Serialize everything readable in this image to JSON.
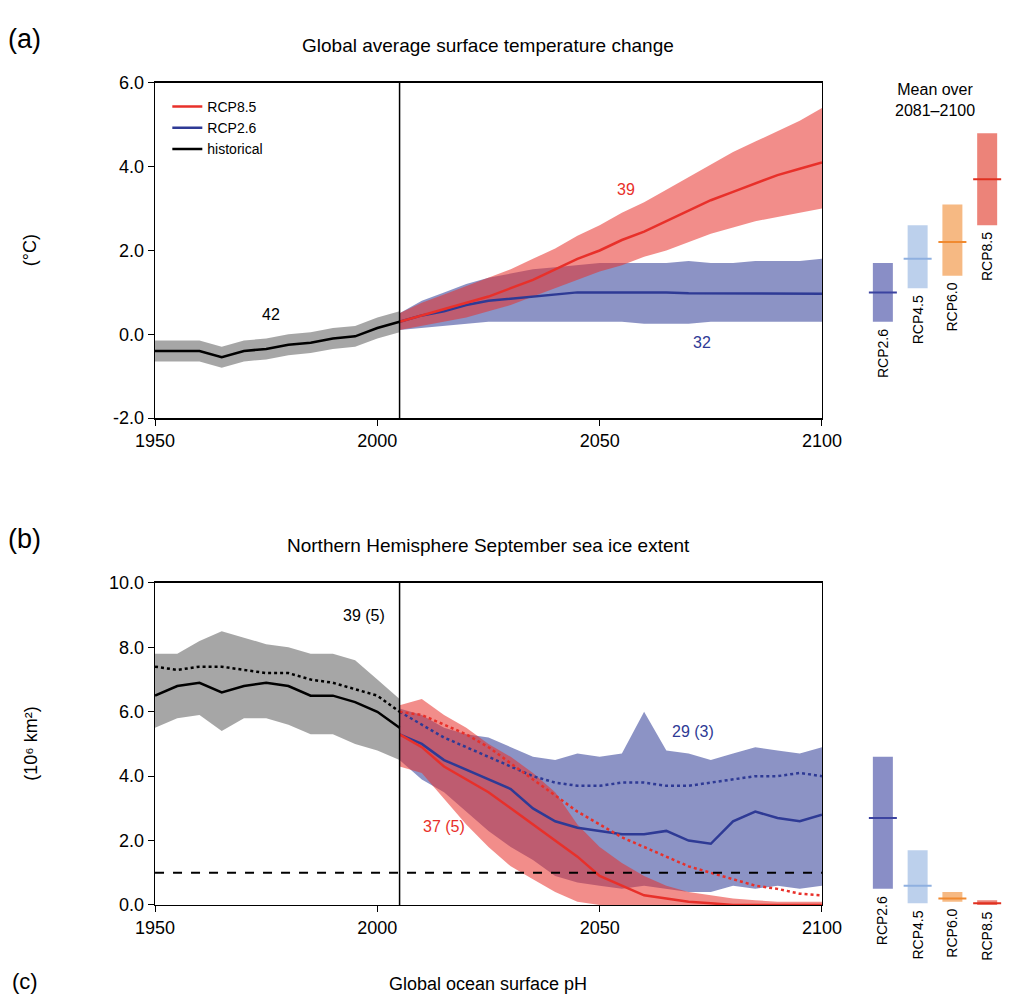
{
  "chart_data": [
    {
      "type": "line",
      "label": "(a)",
      "title": "Global average surface temperature change",
      "ylabel": "(°C)",
      "xlim": [
        1950,
        2100
      ],
      "xticks": [
        1950,
        2000,
        2050,
        2100
      ],
      "ylim": [
        -2.0,
        6.0
      ],
      "yticks": [
        {
          "value": -2.0,
          "label": "-2.0"
        },
        {
          "value": 0.0,
          "label": "0.0"
        },
        {
          "value": 2.0,
          "label": "2.0"
        },
        {
          "value": 4.0,
          "label": "4.0"
        },
        {
          "value": 6.0,
          "label": "6.0"
        }
      ],
      "grid": false,
      "legend": "upper left",
      "vline": 2005,
      "series": [
        {
          "name": "historical",
          "color": "#000000",
          "line_style": "solid",
          "x": [
            1950,
            1955,
            1960,
            1965,
            1970,
            1975,
            1980,
            1985,
            1990,
            1995,
            2000,
            2005
          ],
          "values": [
            -0.4,
            -0.4,
            -0.4,
            -0.55,
            -0.4,
            -0.35,
            -0.25,
            -0.2,
            -0.1,
            -0.05,
            0.15,
            0.3
          ],
          "lower": [
            -0.65,
            -0.65,
            -0.65,
            -0.8,
            -0.65,
            -0.6,
            -0.5,
            -0.45,
            -0.35,
            -0.3,
            -0.1,
            0.05
          ],
          "upper": [
            -0.15,
            -0.15,
            -0.15,
            -0.3,
            -0.15,
            -0.1,
            0.0,
            0.05,
            0.15,
            0.2,
            0.4,
            0.55
          ]
        },
        {
          "name": "RCP2.6",
          "color": "#2e3a95",
          "line_style": "solid",
          "x": [
            2005,
            2010,
            2015,
            2020,
            2025,
            2030,
            2035,
            2040,
            2045,
            2050,
            2055,
            2060,
            2065,
            2070,
            2075,
            2080,
            2085,
            2090,
            2095,
            2100
          ],
          "values": [
            0.3,
            0.45,
            0.55,
            0.7,
            0.8,
            0.85,
            0.9,
            0.95,
            1.0,
            1.0,
            1.0,
            1.0,
            1.0,
            0.98,
            0.98,
            0.98,
            0.97,
            0.97,
            0.97,
            0.97
          ],
          "lower": [
            0.1,
            0.15,
            0.2,
            0.25,
            0.3,
            0.3,
            0.3,
            0.3,
            0.3,
            0.3,
            0.3,
            0.25,
            0.25,
            0.25,
            0.3,
            0.3,
            0.3,
            0.3,
            0.3,
            0.3
          ],
          "upper": [
            0.5,
            0.8,
            1.0,
            1.2,
            1.35,
            1.45,
            1.55,
            1.6,
            1.65,
            1.7,
            1.7,
            1.7,
            1.7,
            1.75,
            1.7,
            1.7,
            1.75,
            1.75,
            1.75,
            1.8
          ]
        },
        {
          "name": "RCP8.5",
          "color": "#e8302a",
          "line_style": "solid",
          "x": [
            2005,
            2010,
            2015,
            2020,
            2025,
            2030,
            2035,
            2040,
            2045,
            2050,
            2055,
            2060,
            2065,
            2070,
            2075,
            2080,
            2085,
            2090,
            2095,
            2100
          ],
          "values": [
            0.3,
            0.45,
            0.6,
            0.75,
            0.9,
            1.1,
            1.3,
            1.55,
            1.8,
            2.0,
            2.25,
            2.45,
            2.7,
            2.95,
            3.2,
            3.4,
            3.6,
            3.8,
            3.95,
            4.1
          ],
          "lower": [
            0.1,
            0.2,
            0.3,
            0.4,
            0.55,
            0.7,
            0.9,
            1.1,
            1.3,
            1.5,
            1.65,
            1.85,
            2.0,
            2.2,
            2.4,
            2.55,
            2.7,
            2.8,
            2.9,
            3.0
          ],
          "upper": [
            0.5,
            0.75,
            0.95,
            1.15,
            1.35,
            1.55,
            1.8,
            2.05,
            2.35,
            2.6,
            2.9,
            3.15,
            3.45,
            3.75,
            4.05,
            4.35,
            4.6,
            4.85,
            5.1,
            5.4
          ]
        }
      ],
      "annotations": [
        {
          "text": "42",
          "x": 1976,
          "y": 0.48,
          "color": "#000000"
        },
        {
          "text": "39",
          "x": 2056,
          "y": 3.45,
          "color": "#e8302a"
        },
        {
          "text": "32",
          "x": 2073,
          "y": -0.2,
          "color": "#2e3a95"
        }
      ],
      "side_bars": {
        "title": [
          "Mean over",
          "2081–2100"
        ],
        "categories": [
          "RCP2.6",
          "RCP4.5",
          "RCP6.0",
          "RCP8.5"
        ],
        "colors": [
          "#3b43a0",
          "#8fb0e0",
          "#f08a30",
          "#e03020"
        ],
        "low": [
          0.3,
          1.1,
          1.4,
          2.6
        ],
        "mean": [
          1.0,
          1.8,
          2.2,
          3.7
        ],
        "high": [
          1.7,
          2.6,
          3.1,
          4.8
        ]
      }
    },
    {
      "type": "line",
      "label": "(b)",
      "title": "Northern Hemisphere September sea ice extent",
      "ylabel": "(10⁶ km²)",
      "xlim": [
        1950,
        2100
      ],
      "xticks": [
        1950,
        2000,
        2050,
        2100
      ],
      "ylim": [
        0.0,
        10.0
      ],
      "yticks": [
        {
          "value": 0.0,
          "label": "0.0"
        },
        {
          "value": 2.0,
          "label": "2.0"
        },
        {
          "value": 4.0,
          "label": "4.0"
        },
        {
          "value": 6.0,
          "label": "6.0"
        },
        {
          "value": 8.0,
          "label": "8.0"
        },
        {
          "value": 10.0,
          "label": "10.0"
        }
      ],
      "grid": false,
      "vline": 2005,
      "hline": 1.0,
      "series": [
        {
          "name": "historical",
          "color": "#000000",
          "line_style": "solid",
          "x": [
            1950,
            1955,
            1960,
            1965,
            1970,
            1975,
            1980,
            1985,
            1990,
            1995,
            2000,
            2005
          ],
          "values": [
            6.5,
            6.8,
            6.9,
            6.6,
            6.8,
            6.9,
            6.8,
            6.5,
            6.5,
            6.3,
            6.0,
            5.5
          ],
          "lower": [
            5.5,
            5.8,
            5.9,
            5.4,
            5.8,
            5.8,
            5.6,
            5.3,
            5.3,
            5.0,
            4.8,
            4.5
          ],
          "upper": [
            7.8,
            7.8,
            8.2,
            8.5,
            8.3,
            8.1,
            8.0,
            7.8,
            7.8,
            7.6,
            7.0,
            6.4
          ]
        },
        {
          "name": "historical",
          "color": "#000000",
          "line_style": "dotted",
          "x": [
            1950,
            1955,
            1960,
            1965,
            1970,
            1975,
            1980,
            1985,
            1990,
            1995,
            2000,
            2005
          ],
          "values": [
            7.4,
            7.3,
            7.4,
            7.4,
            7.3,
            7.2,
            7.2,
            7.0,
            6.9,
            6.7,
            6.5,
            6.0
          ]
        },
        {
          "name": "RCP2.6",
          "color": "#2e3a95",
          "line_style": "solid",
          "x": [
            2005,
            2010,
            2015,
            2020,
            2025,
            2030,
            2035,
            2040,
            2045,
            2050,
            2055,
            2060,
            2065,
            2070,
            2075,
            2080,
            2085,
            2090,
            2095,
            2100
          ],
          "values": [
            5.3,
            5.0,
            4.5,
            4.2,
            3.9,
            3.6,
            3.0,
            2.6,
            2.4,
            2.3,
            2.2,
            2.2,
            2.3,
            2.0,
            1.9,
            2.6,
            2.9,
            2.7,
            2.6,
            2.8
          ],
          "lower": [
            4.5,
            3.9,
            3.5,
            2.9,
            2.3,
            1.8,
            1.4,
            0.9,
            0.7,
            0.6,
            0.5,
            0.6,
            0.5,
            0.4,
            0.4,
            0.6,
            0.5,
            0.6,
            0.5,
            0.6
          ],
          "upper": [
            6.1,
            5.9,
            5.5,
            5.3,
            5.2,
            4.9,
            4.6,
            4.5,
            4.7,
            4.6,
            4.7,
            6.0,
            4.8,
            4.7,
            4.5,
            4.7,
            4.9,
            4.8,
            4.7,
            4.9
          ]
        },
        {
          "name": "RCP2.6",
          "color": "#2e3a95",
          "line_style": "dotted",
          "x": [
            2005,
            2010,
            2015,
            2020,
            2025,
            2030,
            2035,
            2040,
            2045,
            2050,
            2055,
            2060,
            2065,
            2070,
            2075,
            2080,
            2085,
            2090,
            2095,
            2100
          ],
          "values": [
            6.0,
            5.6,
            5.2,
            4.9,
            4.6,
            4.3,
            4.0,
            3.8,
            3.7,
            3.7,
            3.8,
            3.8,
            3.7,
            3.7,
            3.8,
            3.9,
            4.0,
            4.0,
            4.1,
            4.0
          ]
        },
        {
          "name": "RCP8.5",
          "color": "#e8302a",
          "line_style": "solid",
          "x": [
            2005,
            2010,
            2015,
            2020,
            2025,
            2030,
            2035,
            2040,
            2045,
            2050,
            2055,
            2060,
            2065,
            2070,
            2075,
            2080,
            2085,
            2090,
            2095,
            2100
          ],
          "values": [
            5.3,
            4.9,
            4.3,
            3.9,
            3.5,
            3.0,
            2.5,
            2.0,
            1.5,
            0.9,
            0.6,
            0.3,
            0.2,
            0.1,
            0.05,
            0.0,
            0.0,
            0.0,
            0.0,
            0.0
          ],
          "lower": [
            4.3,
            4.1,
            3.3,
            2.5,
            1.8,
            1.2,
            0.8,
            0.4,
            0.1,
            0,
            0,
            0,
            0,
            0,
            0,
            0,
            0,
            0,
            0,
            0
          ],
          "upper": [
            6.2,
            6.4,
            5.9,
            5.5,
            5.0,
            4.6,
            4.1,
            3.5,
            2.5,
            1.8,
            1.3,
            0.9,
            0.6,
            0.4,
            0.3,
            0.2,
            0.15,
            0.1,
            0.1,
            0.1
          ]
        },
        {
          "name": "RCP8.5",
          "color": "#e8302a",
          "line_style": "dotted",
          "x": [
            2005,
            2010,
            2015,
            2020,
            2025,
            2030,
            2035,
            2040,
            2045,
            2050,
            2055,
            2060,
            2065,
            2070,
            2075,
            2080,
            2085,
            2090,
            2095,
            2100
          ],
          "values": [
            6.0,
            5.9,
            5.6,
            5.3,
            4.9,
            4.4,
            3.9,
            3.4,
            2.9,
            2.5,
            2.1,
            1.8,
            1.5,
            1.2,
            1.0,
            0.8,
            0.6,
            0.5,
            0.35,
            0.3
          ]
        }
      ],
      "annotations": [
        {
          "text": "39 (5)",
          "x": 1997,
          "y": 9.0,
          "color": "#000000"
        },
        {
          "text": "29 (3)",
          "x": 2071,
          "y": 5.4,
          "color": "#2e3a95"
        },
        {
          "text": "37 (5)",
          "x": 2015,
          "y": 2.45,
          "color": "#e8302a"
        }
      ],
      "side_bars": {
        "categories": [
          "RCP2.6",
          "RCP4.5",
          "RCP6.0",
          "RCP8.5"
        ],
        "colors": [
          "#3b43a0",
          "#8fb0e0",
          "#f08a30",
          "#e03020"
        ],
        "low": [
          0.5,
          0.05,
          0.1,
          0.0
        ],
        "mean": [
          2.7,
          0.6,
          0.2,
          0.05
        ],
        "high": [
          4.6,
          1.7,
          0.4,
          0.15
        ]
      }
    },
    {
      "type": "line",
      "label": "(c)",
      "title": "Global ocean surface pH"
    }
  ]
}
